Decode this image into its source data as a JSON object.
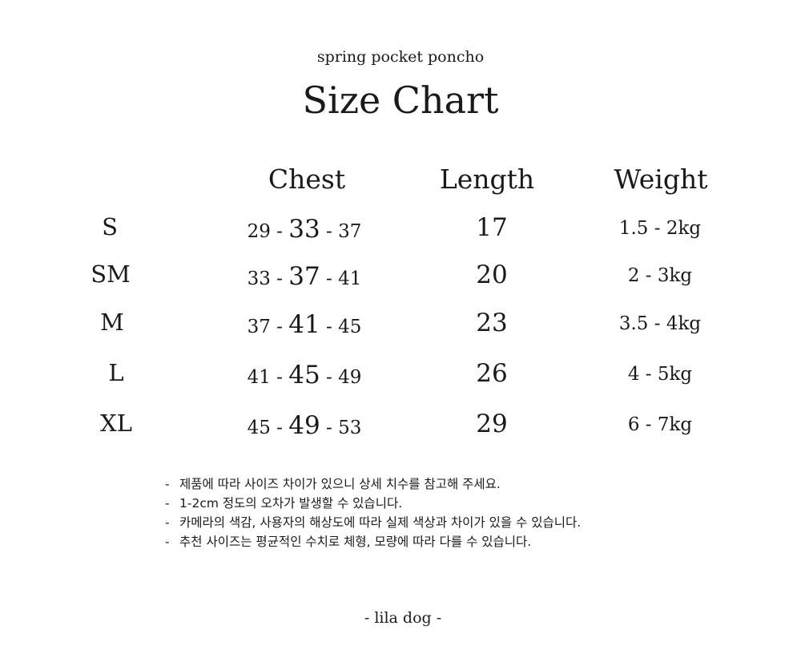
{
  "subtitle": "spring pocket poncho",
  "title": "Size Chart",
  "headers": {
    "chest": "Chest",
    "length": "Length",
    "weight": "Weight"
  },
  "rows": [
    {
      "size": "S",
      "chest_min": "29",
      "chest_mid": "33",
      "chest_max": "37",
      "length": "17",
      "weight": "1.5 - 2kg"
    },
    {
      "size": "SM",
      "chest_min": "33",
      "chest_mid": "37",
      "chest_max": "41",
      "length": "20",
      "weight": "2 - 3kg"
    },
    {
      "size": "M",
      "chest_min": "37",
      "chest_mid": "41",
      "chest_max": "45",
      "length": "23",
      "weight": "3.5 - 4kg"
    },
    {
      "size": "L",
      "chest_min": "41",
      "chest_mid": "45",
      "chest_max": "49",
      "length": "26",
      "weight": "4 - 5kg"
    },
    {
      "size": "XL",
      "chest_min": "45",
      "chest_mid": "49",
      "chest_max": "53",
      "length": "29",
      "weight": "6 - 7kg"
    }
  ],
  "notes": [
    "제품에 따라 사이즈 차이가 있으니 상세 치수를 참고해 주세요.",
    "1-2cm 정도의 오차가 발생할 수 있습니다.",
    "카메라의 색감, 사용자의 해상도에 따라 실제 색상과 차이가 있을 수 있습니다.",
    "추천 사이즈는 평균적인 수치로 체형, 모량에 따라 다를 수 있습니다."
  ],
  "footer": "-  lila dog -"
}
